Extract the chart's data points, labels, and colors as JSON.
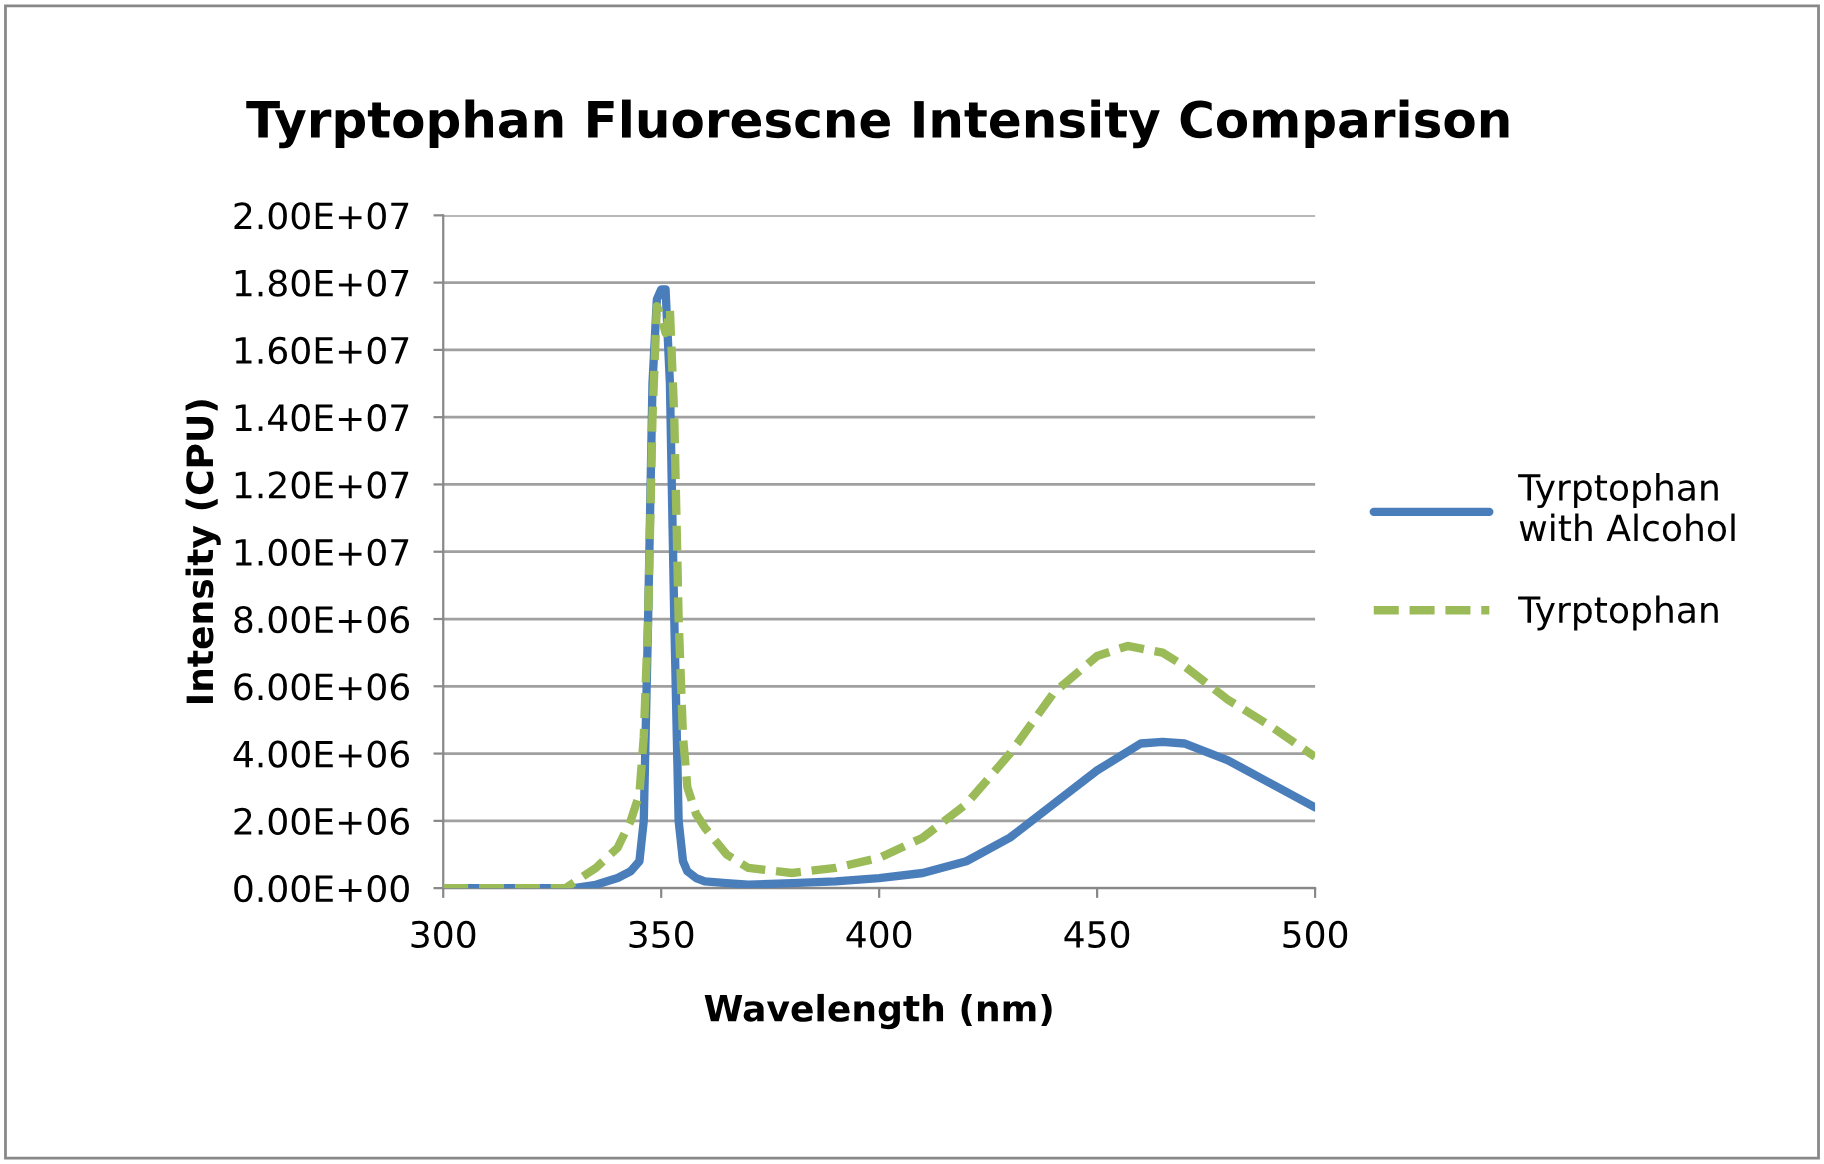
{
  "chart_data": {
    "type": "line",
    "title": "Tyrptophan Fluorescne Intensity Comparison",
    "xlabel": "Wavelength (nm)",
    "ylabel": "Intensity (CPU)",
    "series": [
      {
        "name": "Tyrptophan with Alcohol",
        "color": "#4a7ebb",
        "line_style": "solid",
        "x": [
          300,
          310,
          320,
          330,
          335,
          340,
          343,
          345,
          346,
          347,
          348,
          349,
          350,
          351,
          352,
          353,
          354,
          355,
          356,
          358,
          360,
          365,
          370,
          380,
          390,
          400,
          410,
          420,
          430,
          440,
          450,
          460,
          465,
          470,
          480,
          490,
          500
        ],
        "values": [
          0,
          0,
          0,
          0,
          100000,
          300000,
          500000,
          800000,
          2000000,
          8000000,
          15000000,
          17500000,
          17800000,
          17800000,
          15000000,
          8000000,
          2000000,
          800000,
          500000,
          300000,
          200000,
          150000,
          100000,
          150000,
          200000,
          300000,
          450000,
          800000,
          1500000,
          2500000,
          3500000,
          4300000,
          4350000,
          4300000,
          3800000,
          3100000,
          2400000
        ]
      },
      {
        "name": "Tyrptophan",
        "color": "#9bbb59",
        "line_style": "dashed",
        "x": [
          300,
          310,
          320,
          328,
          335,
          340,
          343,
          345,
          346,
          347,
          348,
          349,
          350,
          351,
          352,
          353,
          354,
          355,
          356,
          358,
          360,
          365,
          370,
          380,
          390,
          400,
          410,
          420,
          430,
          440,
          450,
          457,
          465,
          470,
          480,
          490,
          500
        ],
        "values": [
          0,
          0,
          0,
          0,
          600000,
          1200000,
          2000000,
          2800000,
          4500000,
          8000000,
          14000000,
          17300000,
          17000000,
          16500000,
          17200000,
          14000000,
          8000000,
          4500000,
          3000000,
          2200000,
          1800000,
          1000000,
          600000,
          450000,
          600000,
          900000,
          1500000,
          2500000,
          4000000,
          5800000,
          6900000,
          7200000,
          7000000,
          6600000,
          5600000,
          4800000,
          3900000
        ]
      }
    ],
    "xlim": [
      300,
      500
    ],
    "xticks": [
      300,
      350,
      400,
      450,
      500
    ],
    "ylim": [
      0,
      20000000
    ],
    "yticks": [
      {
        "value": 0,
        "label": "0.00E+00"
      },
      {
        "value": 2000000,
        "label": "2.00E+06"
      },
      {
        "value": 4000000,
        "label": "4.00E+06"
      },
      {
        "value": 6000000,
        "label": "6.00E+06"
      },
      {
        "value": 8000000,
        "label": "8.00E+06"
      },
      {
        "value": 10000000,
        "label": "1.00E+07"
      },
      {
        "value": 12000000,
        "label": "1.20E+07"
      },
      {
        "value": 14000000,
        "label": "1.40E+07"
      },
      {
        "value": 16000000,
        "label": "1.60E+07"
      },
      {
        "value": 18000000,
        "label": "1.80E+07"
      },
      {
        "value": 20000000,
        "label": "2.00E+07"
      }
    ],
    "grid": "y",
    "legend": "right",
    "marker": "none"
  }
}
